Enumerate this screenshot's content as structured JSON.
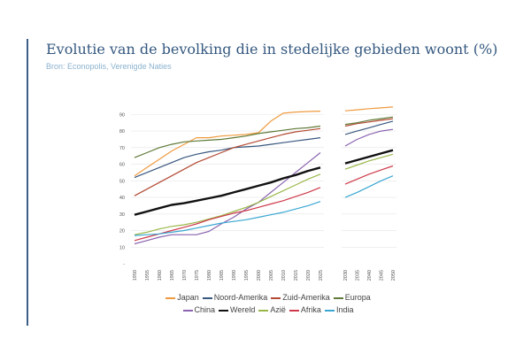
{
  "header": {
    "title": "Evolutie van de bevolking die in stedelijke gebieden woont (%)",
    "source": "Bron: Econopolis, Verenigde Naties"
  },
  "chart_data": {
    "type": "line",
    "ylim": [
      0,
      95
    ],
    "yticks": [
      10,
      20,
      30,
      40,
      50,
      60,
      70,
      80,
      90
    ],
    "x_left": [
      1950,
      1955,
      1960,
      1965,
      1970,
      1975,
      1980,
      1985,
      1990,
      1995,
      2000,
      2005,
      2010,
      2015,
      2020,
      2025
    ],
    "x_right": [
      2030,
      2035,
      2040,
      2045,
      2050
    ],
    "series": [
      {
        "name": "Japan",
        "color": "#ef9a3f",
        "left": [
          53,
          58,
          63,
          68,
          72,
          76,
          76,
          77,
          77.5,
          78,
          79,
          86,
          90.8,
          91.5,
          91.8,
          92
        ],
        "right": [
          92.2,
          92.8,
          93.5,
          94,
          94.5
        ]
      },
      {
        "name": "Noord-Amerika",
        "color": "#39577f",
        "left": [
          52,
          55,
          58,
          61,
          64,
          66,
          67.5,
          68.5,
          70,
          70.5,
          71,
          72,
          73,
          74,
          75,
          76
        ],
        "right": [
          78,
          80,
          82,
          84,
          86
        ]
      },
      {
        "name": "Zuid-Amerika",
        "color": "#b34a33",
        "left": [
          41,
          45,
          49,
          53,
          57,
          61,
          64,
          67,
          70,
          72,
          74,
          76,
          78,
          79.5,
          80.5,
          81.5
        ],
        "right": [
          83,
          84.5,
          85.5,
          86.5,
          87.5
        ]
      },
      {
        "name": "Europa",
        "color": "#5f7937",
        "left": [
          64,
          67,
          70,
          72,
          73.5,
          74,
          74.5,
          75,
          76,
          77,
          78.5,
          79.5,
          80.5,
          81.5,
          82,
          83
        ],
        "right": [
          84,
          85,
          86.5,
          87.5,
          88.5
        ]
      },
      {
        "name": "China",
        "color": "#8a64b0",
        "left": [
          12,
          14,
          16,
          17.5,
          17.5,
          17.5,
          19.5,
          24,
          28,
          33,
          37,
          43,
          49,
          55,
          61,
          67
        ],
        "right": [
          71,
          75,
          78,
          80,
          81
        ]
      },
      {
        "name": "Wereld",
        "color": "#111111",
        "left": [
          29.5,
          31.5,
          33.5,
          35.5,
          36.5,
          38,
          39.5,
          41,
          43,
          45,
          47,
          49,
          51.5,
          53.5,
          56,
          58
        ],
        "right": [
          60.5,
          62.5,
          64.5,
          66.5,
          68.5
        ]
      },
      {
        "name": "Azië",
        "color": "#9ab84a",
        "left": [
          17.5,
          19,
          21,
          22.5,
          23.5,
          25,
          27,
          29,
          31.5,
          34,
          37,
          40.5,
          44,
          47.5,
          51,
          54
        ],
        "right": [
          57,
          59.5,
          62,
          64,
          66
        ]
      },
      {
        "name": "Afrika",
        "color": "#cf3a4a",
        "left": [
          14,
          16,
          18,
          20,
          22,
          24,
          26.5,
          28.5,
          30.5,
          32,
          34,
          36,
          38,
          40.5,
          43,
          46
        ],
        "right": [
          48,
          51,
          54,
          56.5,
          59
        ]
      },
      {
        "name": "India",
        "color": "#3aa7d2",
        "left": [
          17,
          17.5,
          18,
          19,
          20,
          21.5,
          23,
          24.5,
          25.5,
          26.5,
          28,
          29.5,
          31,
          33,
          35,
          37.5
        ],
        "right": [
          40,
          43,
          46.5,
          50,
          53
        ]
      }
    ]
  }
}
